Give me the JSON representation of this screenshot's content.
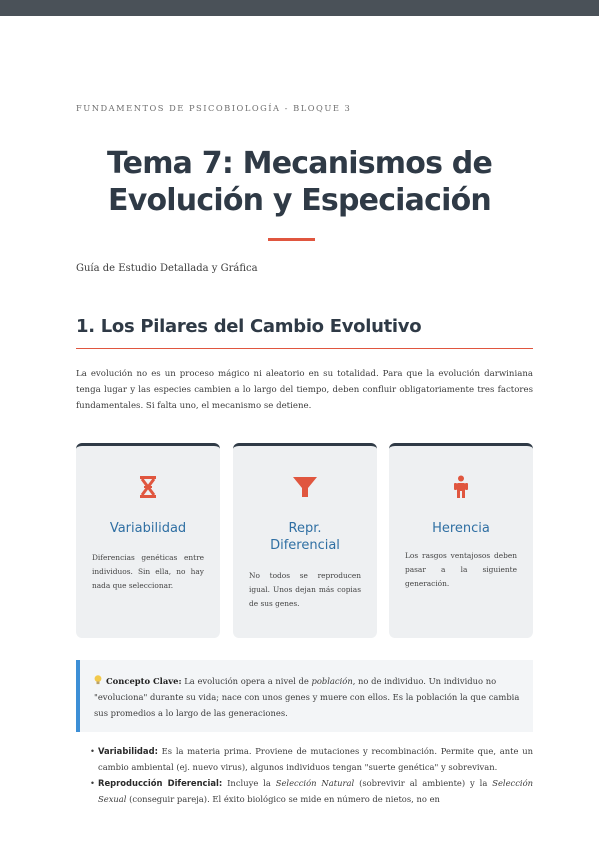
{
  "header": {
    "kicker": "FUNDAMENTOS DE PSICOBIOLOGÍA - BLOQUE 3",
    "title_line1": "Tema 7: Mecanismos de",
    "title_line2": "Evolución y Especiación",
    "subtitle": "Guía de Estudio Detallada y Gráfica"
  },
  "section1": {
    "heading": "1. Los Pilares del Cambio Evolutivo",
    "intro": "La evolución no es un proceso mágico ni aleatorio en su totalidad. Para que la evolución darwiniana tenga lugar y las especies cambien a lo largo del tiempo, deben confluir obligatoriamente tres factores fundamentales. Si falta uno, el mecanismo se detiene."
  },
  "cards": [
    {
      "icon": "dna-icon",
      "title": "Variabilidad",
      "text": "Diferencias genéticas entre individuos. Sin ella, no hay nada que seleccionar."
    },
    {
      "icon": "funnel-icon",
      "title_line1": "Repr.",
      "title_line2": "Diferencial",
      "text": "No todos se reproducen igual. Unos dejan más copias de sus genes."
    },
    {
      "icon": "child-icon",
      "title": "Herencia",
      "text": "Los rasgos ventajosos deben pasar a la siguiente generación."
    }
  ],
  "colors": {
    "accent": "#e0563f",
    "heading": "#2f3a46",
    "card_title": "#2f6fa3",
    "callout_border": "#3d8fd6"
  },
  "callout": {
    "icon": "lightbulb-icon",
    "label": "Concepto Clave:",
    "text_a": " La evolución opera a nivel de ",
    "text_em": "población",
    "text_b": ", no de individuo. Un individuo no \"evoluciona\" durante su vida; nace con unos genes y muere con ellos. Es la población la que cambia sus promedios a lo largo de las generaciones."
  },
  "bullets": [
    {
      "label": "Variabilidad:",
      "text": " Es la materia prima. Proviene de mutaciones y recombinación. Permite que, ante un cambio ambiental (ej. nuevo virus), algunos individuos tengan \"suerte genética\" y sobrevivan."
    },
    {
      "label": "Reproducción Diferencial:",
      "text_a": " Incluye la ",
      "em1": "Selección Natural",
      "text_b": " (sobrevivir al ambiente) y la ",
      "em2": "Selección Sexual",
      "text_c": " (conseguir pareja). El éxito biológico se mide en número de nietos, no en"
    }
  ]
}
